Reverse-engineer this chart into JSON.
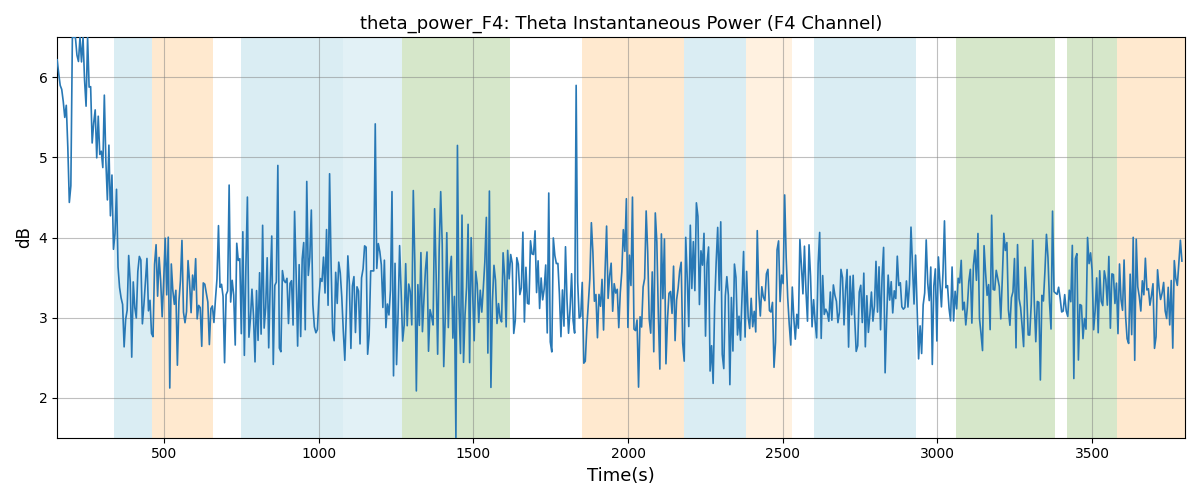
{
  "title": "theta_power_F4: Theta Instantaneous Power (F4 Channel)",
  "xlabel": "Time(s)",
  "ylabel": "dB",
  "xlim": [
    155,
    3800
  ],
  "ylim": [
    1.5,
    6.5
  ],
  "line_color": "#2878b5",
  "line_width": 1.2,
  "bg_color": "white",
  "grid_color": "gray",
  "grid_alpha": 0.5,
  "bands": [
    {
      "xmin": 340,
      "xmax": 460,
      "color": "#add8e6",
      "alpha": 0.45
    },
    {
      "xmin": 460,
      "xmax": 660,
      "color": "#ffd8a8",
      "alpha": 0.55
    },
    {
      "xmin": 750,
      "xmax": 1080,
      "color": "#add8e6",
      "alpha": 0.45
    },
    {
      "xmin": 1080,
      "xmax": 1270,
      "color": "#add8e6",
      "alpha": 0.35
    },
    {
      "xmin": 1270,
      "xmax": 1620,
      "color": "#b5d5a0",
      "alpha": 0.55
    },
    {
      "xmin": 1850,
      "xmax": 2180,
      "color": "#ffd8a8",
      "alpha": 0.55
    },
    {
      "xmin": 2180,
      "xmax": 2380,
      "color": "#add8e6",
      "alpha": 0.45
    },
    {
      "xmin": 2380,
      "xmax": 2530,
      "color": "#ffd8a8",
      "alpha": 0.35
    },
    {
      "xmin": 2600,
      "xmax": 2930,
      "color": "#add8e6",
      "alpha": 0.45
    },
    {
      "xmin": 3060,
      "xmax": 3380,
      "color": "#b5d5a0",
      "alpha": 0.55
    },
    {
      "xmin": 3420,
      "xmax": 3580,
      "color": "#b5d5a0",
      "alpha": 0.55
    },
    {
      "xmin": 3580,
      "xmax": 3800,
      "color": "#ffd8a8",
      "alpha": 0.55
    }
  ],
  "seed": 42,
  "n_points": 740,
  "time_start": 155,
  "time_end": 3790,
  "title_fontsize": 13,
  "xlabel_fontsize": 13,
  "ylabel_fontsize": 12,
  "xticks": [
    500,
    1000,
    1500,
    2000,
    2500,
    3000,
    3500
  ],
  "yticks": [
    2,
    3,
    4,
    5,
    6
  ]
}
